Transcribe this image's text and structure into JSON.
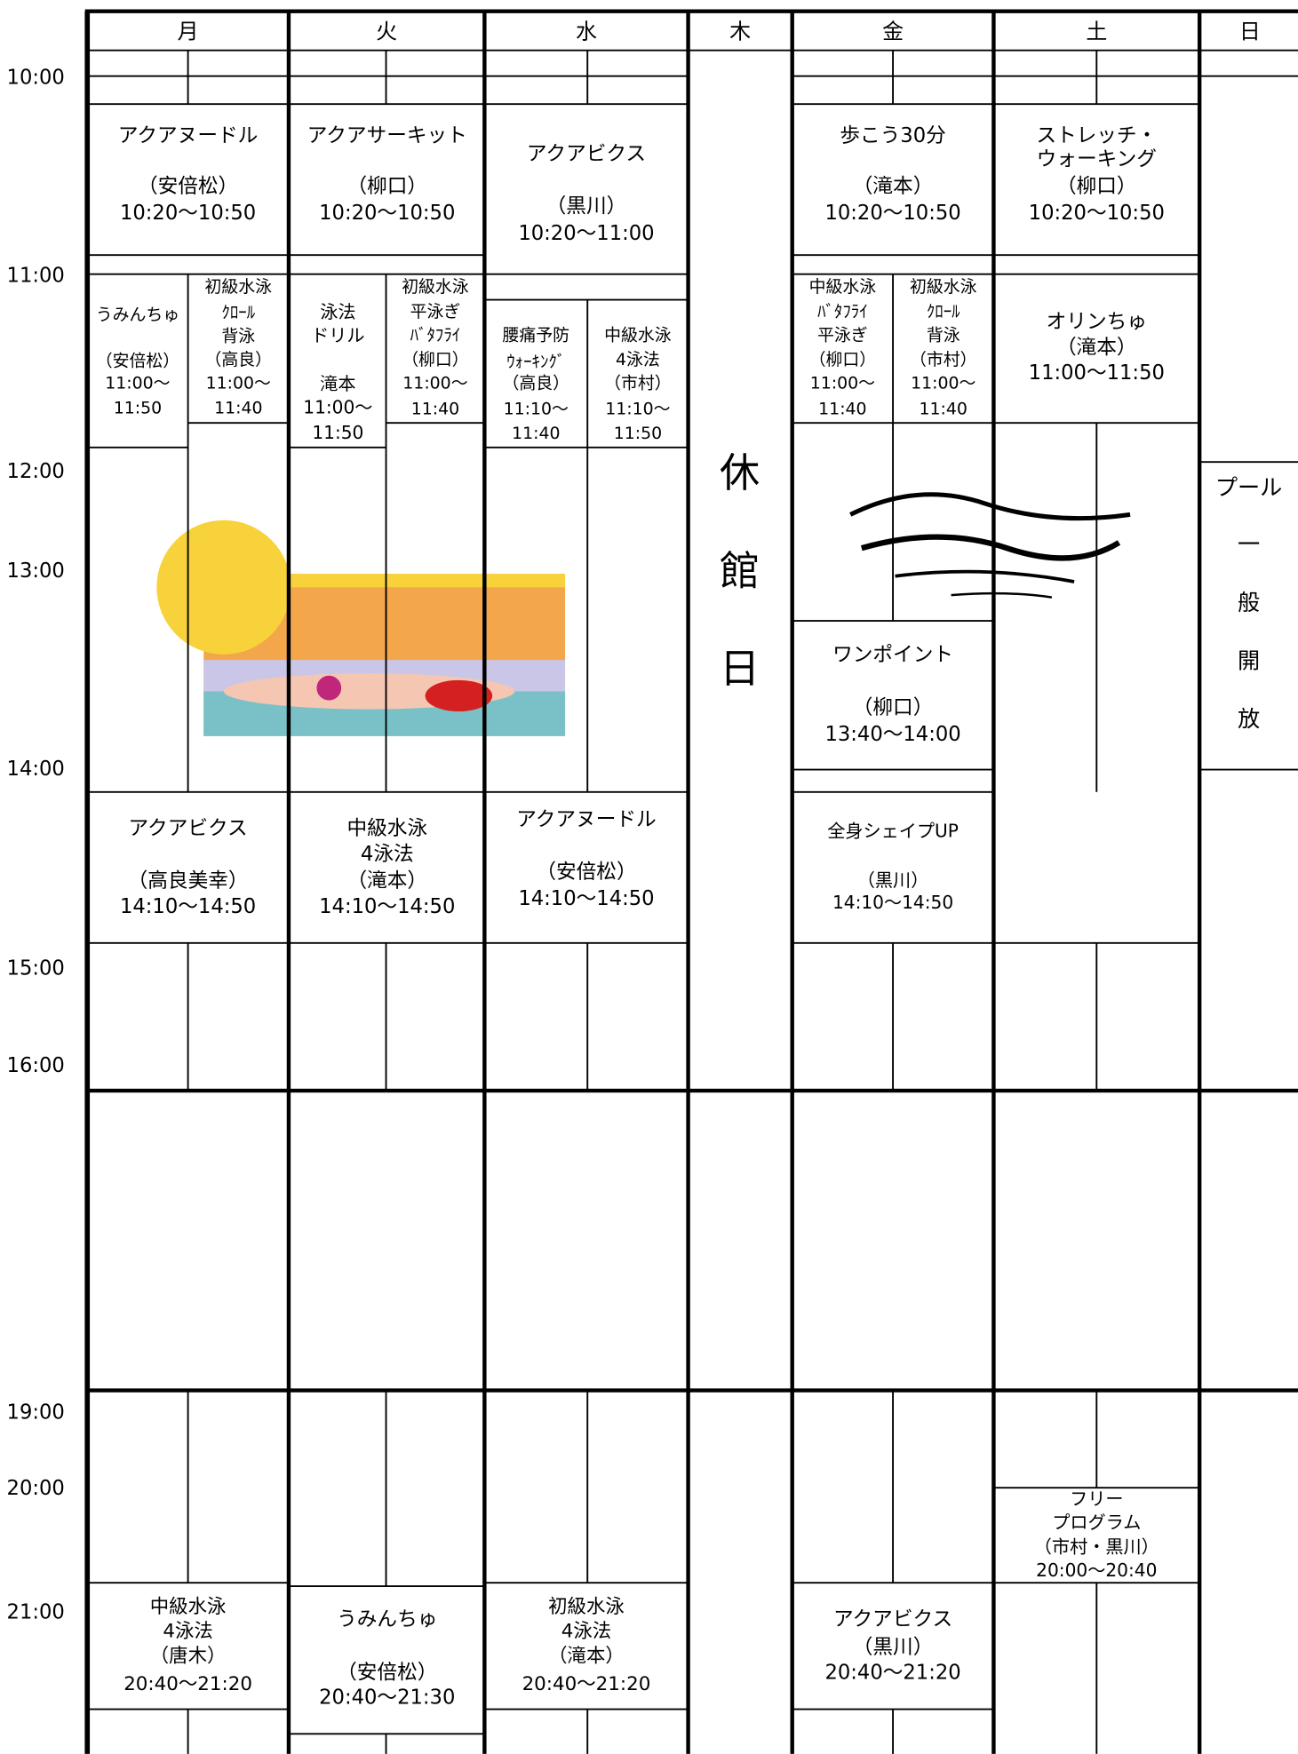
{
  "header": {
    "days": [
      "月",
      "火",
      "水",
      "木",
      "金",
      "土",
      "日"
    ]
  },
  "times": [
    "10:00",
    "11:00",
    "12:00",
    "13:00",
    "14:00",
    "15:00",
    "16:00",
    "19:00",
    "20:00",
    "21:00"
  ],
  "closed_day": [
    "休",
    "館",
    "日"
  ],
  "events": [
    {
      "lines": [
        "アクアヌードル",
        "（安倍松）",
        "10:20〜10:50"
      ]
    },
    {
      "lines": [
        "アクアサーキット",
        "（柳口）",
        "10:20〜10:50"
      ]
    },
    {
      "lines": [
        "アクアビクス",
        "（黒川）",
        "10:20〜11:00"
      ]
    },
    {
      "lines": [
        "歩こう30分",
        "（滝本）",
        "10:20〜10:50"
      ]
    },
    {
      "lines": [
        "ストレッチ・",
        "ウォーキング",
        "（柳口）",
        "10:20〜10:50"
      ]
    },
    {
      "lines": [
        "うみんちゅ",
        "（安倍松）",
        "11:00〜",
        "11:50"
      ]
    },
    {
      "lines": [
        "初級水泳",
        "ｸﾛｰﾙ",
        "背泳",
        "（高良）",
        "11:00〜",
        "11:40"
      ]
    },
    {
      "lines": [
        "泳法",
        "ドリル",
        "滝本",
        "11:00〜",
        "11:50"
      ]
    },
    {
      "lines": [
        "初級水泳",
        "平泳ぎ",
        "ﾊﾞﾀﾌﾗｲ",
        "（柳口）",
        "11:00〜",
        "11:40"
      ]
    },
    {
      "lines": [
        "腰痛予防",
        "ｳｫｰｷﾝｸﾞ",
        "（高良）",
        "11:10〜",
        "11:40"
      ]
    },
    {
      "lines": [
        "中級水泳",
        "4泳法",
        "（市村）",
        "11:10〜",
        "11:50"
      ]
    },
    {
      "lines": [
        "中級水泳",
        "ﾊﾞﾀﾌﾗｲ",
        "平泳ぎ",
        "（柳口）",
        "11:00〜",
        "11:40"
      ]
    },
    {
      "lines": [
        "初級水泳",
        "ｸﾛｰﾙ",
        "背泳",
        "（市村）",
        "11:00〜",
        "11:40"
      ]
    },
    {
      "lines": [
        "オリンちゅ",
        "（滝本）",
        "11:00〜11:50"
      ]
    },
    {
      "lines": [
        "ワンポイント",
        "（柳口）",
        "13:40〜14:00"
      ]
    },
    {
      "lines": [
        "プール",
        "一",
        "般",
        "開",
        "放"
      ]
    },
    {
      "lines": [
        "アクアビクス",
        "（高良美幸）",
        "14:10〜14:50"
      ]
    },
    {
      "lines": [
        "中級水泳",
        "4泳法",
        "（滝本）",
        "14:10〜14:50"
      ]
    },
    {
      "lines": [
        "アクアヌードル",
        "（安倍松）",
        "14:10〜14:50"
      ]
    },
    {
      "lines": [
        "全身シェイプUP",
        "（黒川）",
        "14:10〜14:50"
      ]
    },
    {
      "lines": [
        "フリー",
        "プログラム",
        "（市村・黒川）",
        "20:00〜20:40"
      ]
    },
    {
      "lines": [
        "中級水泳",
        "4泳法",
        "（唐木）",
        "20:40〜21:20"
      ]
    },
    {
      "lines": [
        "うみんちゅ",
        "（安倍松）",
        "20:40〜21:30"
      ]
    },
    {
      "lines": [
        "初級水泳",
        "4泳法",
        "（滝本）",
        "20:40〜21:20"
      ]
    },
    {
      "lines": [
        "アクアビクス",
        "（黒川）",
        "20:40〜21:20"
      ]
    }
  ]
}
